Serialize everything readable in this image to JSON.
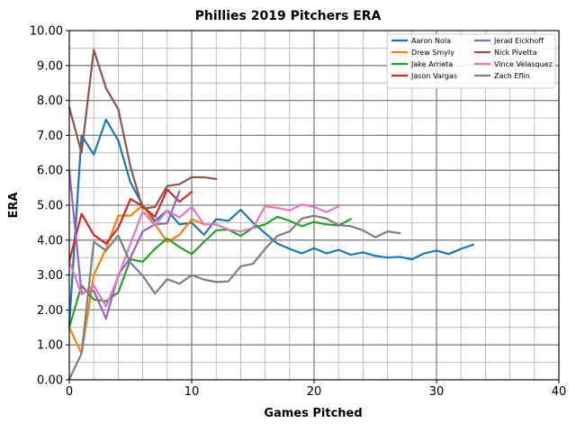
{
  "chart_data": {
    "type": "line",
    "title": "Phillies 2019 Pitchers ERA",
    "xlabel": "Games Pitched",
    "ylabel": "ERA",
    "xlim": [
      0,
      40
    ],
    "ylim": [
      0,
      10
    ],
    "x_ticks": [
      "0",
      "10",
      "20",
      "30",
      "40"
    ],
    "y_ticks": [
      "0.00",
      "1.00",
      "2.00",
      "3.00",
      "4.00",
      "5.00",
      "6.00",
      "7.00",
      "8.00",
      "9.00",
      "10.00"
    ],
    "grid": true,
    "legend_position": "top-right",
    "series": [
      {
        "name": "Aaron Nola",
        "color": "#1f77b4",
        "x": [
          0,
          1,
          2,
          3,
          4,
          5,
          6,
          7,
          8,
          9,
          10,
          11,
          12,
          13,
          14,
          15,
          16,
          17,
          18,
          19,
          20,
          21,
          22,
          23,
          24,
          25,
          26,
          27,
          28,
          29,
          30,
          31,
          32,
          33
        ],
        "y": [
          1.6,
          7.0,
          6.45,
          7.45,
          6.85,
          5.65,
          5.0,
          4.55,
          4.85,
          4.45,
          4.5,
          4.15,
          4.6,
          4.55,
          4.87,
          4.5,
          4.2,
          3.9,
          3.75,
          3.62,
          3.77,
          3.62,
          3.72,
          3.58,
          3.65,
          3.55,
          3.5,
          3.52,
          3.45,
          3.62,
          3.7,
          3.6,
          3.75,
          3.87
        ]
      },
      {
        "name": "Drew Smyly",
        "color": "#ff7f0e",
        "x": [
          0,
          1,
          2,
          3,
          4,
          5,
          6,
          7,
          8,
          9,
          10,
          11
        ],
        "y": [
          1.5,
          0.75,
          3.0,
          3.75,
          4.7,
          4.7,
          5.0,
          4.45,
          3.95,
          4.15,
          4.6,
          4.45
        ]
      },
      {
        "name": "Jake Arrieta",
        "color": "#2ca02c",
        "x": [
          0,
          1,
          2,
          3,
          4,
          5,
          6,
          7,
          8,
          9,
          10,
          11,
          12,
          13,
          14,
          15,
          16,
          17,
          18,
          19,
          20,
          21,
          22,
          23
        ],
        "y": [
          1.5,
          2.7,
          2.3,
          2.25,
          2.5,
          3.45,
          3.38,
          3.75,
          4.05,
          3.8,
          3.6,
          3.95,
          4.28,
          4.3,
          4.12,
          4.35,
          4.45,
          4.67,
          4.55,
          4.4,
          4.52,
          4.45,
          4.42,
          4.6
        ]
      },
      {
        "name": "Jason Vargas",
        "color": "#d62728",
        "x": [
          0,
          1,
          2,
          3,
          4,
          5,
          6,
          7,
          8,
          9,
          10
        ],
        "y": [
          3.4,
          4.75,
          4.15,
          3.9,
          4.35,
          5.18,
          4.97,
          4.67,
          5.45,
          5.1,
          5.38
        ]
      },
      {
        "name": "Jerad Eickhoff",
        "color": "#9467bd",
        "x": [
          0,
          1,
          2,
          3,
          4,
          5,
          6,
          7,
          8,
          9
        ],
        "y": [
          6.0,
          2.5,
          2.55,
          1.75,
          3.0,
          3.5,
          4.25,
          4.45,
          4.48,
          5.4
        ]
      },
      {
        "name": "Nick Pivetta",
        "color": "#8c564b",
        "x": [
          0,
          1,
          2,
          3,
          4,
          5,
          6,
          7,
          8,
          9,
          10,
          11,
          12
        ],
        "y": [
          7.8,
          6.5,
          9.45,
          8.35,
          7.75,
          6.1,
          4.9,
          4.95,
          5.55,
          5.6,
          5.8,
          5.8,
          5.75
        ]
      },
      {
        "name": "Vince Velasquez",
        "color": "#e377c2",
        "x": [
          0,
          1,
          2,
          3,
          4,
          5,
          6,
          7,
          8,
          9,
          10,
          11,
          12,
          13,
          14,
          15,
          16,
          17,
          18,
          19,
          20,
          21,
          22
        ],
        "y": [
          3.4,
          2.45,
          2.7,
          2.1,
          2.95,
          3.9,
          4.82,
          4.42,
          4.85,
          4.65,
          4.95,
          4.45,
          4.45,
          4.3,
          4.25,
          4.35,
          4.97,
          4.92,
          4.85,
          5.02,
          4.95,
          4.8,
          4.97
        ]
      },
      {
        "name": "Zach Eflin",
        "color": "#7f7f7f",
        "x": [
          0,
          1,
          2,
          3,
          4,
          5,
          6,
          7,
          8,
          9,
          10,
          11,
          12,
          13,
          14,
          15,
          16,
          17,
          18,
          19,
          20,
          21,
          22,
          23,
          24,
          25,
          26,
          27
        ],
        "y": [
          0.02,
          0.75,
          3.95,
          3.7,
          4.13,
          3.35,
          2.98,
          2.47,
          2.88,
          2.75,
          3.0,
          2.87,
          2.8,
          2.82,
          3.25,
          3.32,
          3.75,
          4.12,
          4.25,
          4.62,
          4.7,
          4.62,
          4.43,
          4.4,
          4.28,
          4.08,
          4.25,
          4.2
        ]
      }
    ]
  }
}
